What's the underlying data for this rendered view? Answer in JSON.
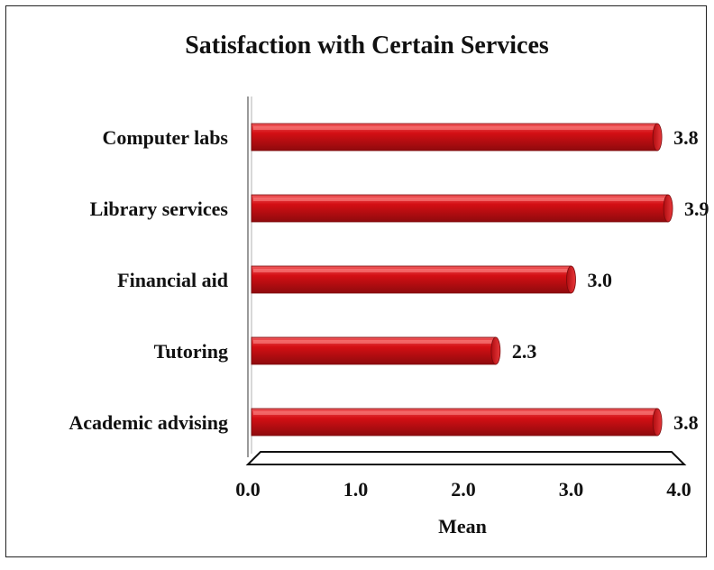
{
  "chart_data": {
    "type": "bar",
    "orientation": "horizontal",
    "title": "Satisfaction with  Certain Services",
    "xlabel": "Mean",
    "ylabel": "",
    "categories": [
      "Computer labs",
      "Library services",
      "Financial aid",
      "Tutoring",
      "Academic advising"
    ],
    "values": [
      3.8,
      3.9,
      3.0,
      2.3,
      3.8
    ],
    "value_labels": [
      "3.8",
      "3.9",
      "3.0",
      "2.3",
      "3.8"
    ],
    "xlim": [
      0,
      4
    ],
    "xticks": [
      "0.0",
      "1.0",
      "2.0",
      "3.0",
      "4.0"
    ],
    "grid": false,
    "legend": "none",
    "colors": {
      "bar": "#d40f14",
      "bar_dark": "#8e0a0d",
      "bar_light": "#f05a5c"
    }
  }
}
